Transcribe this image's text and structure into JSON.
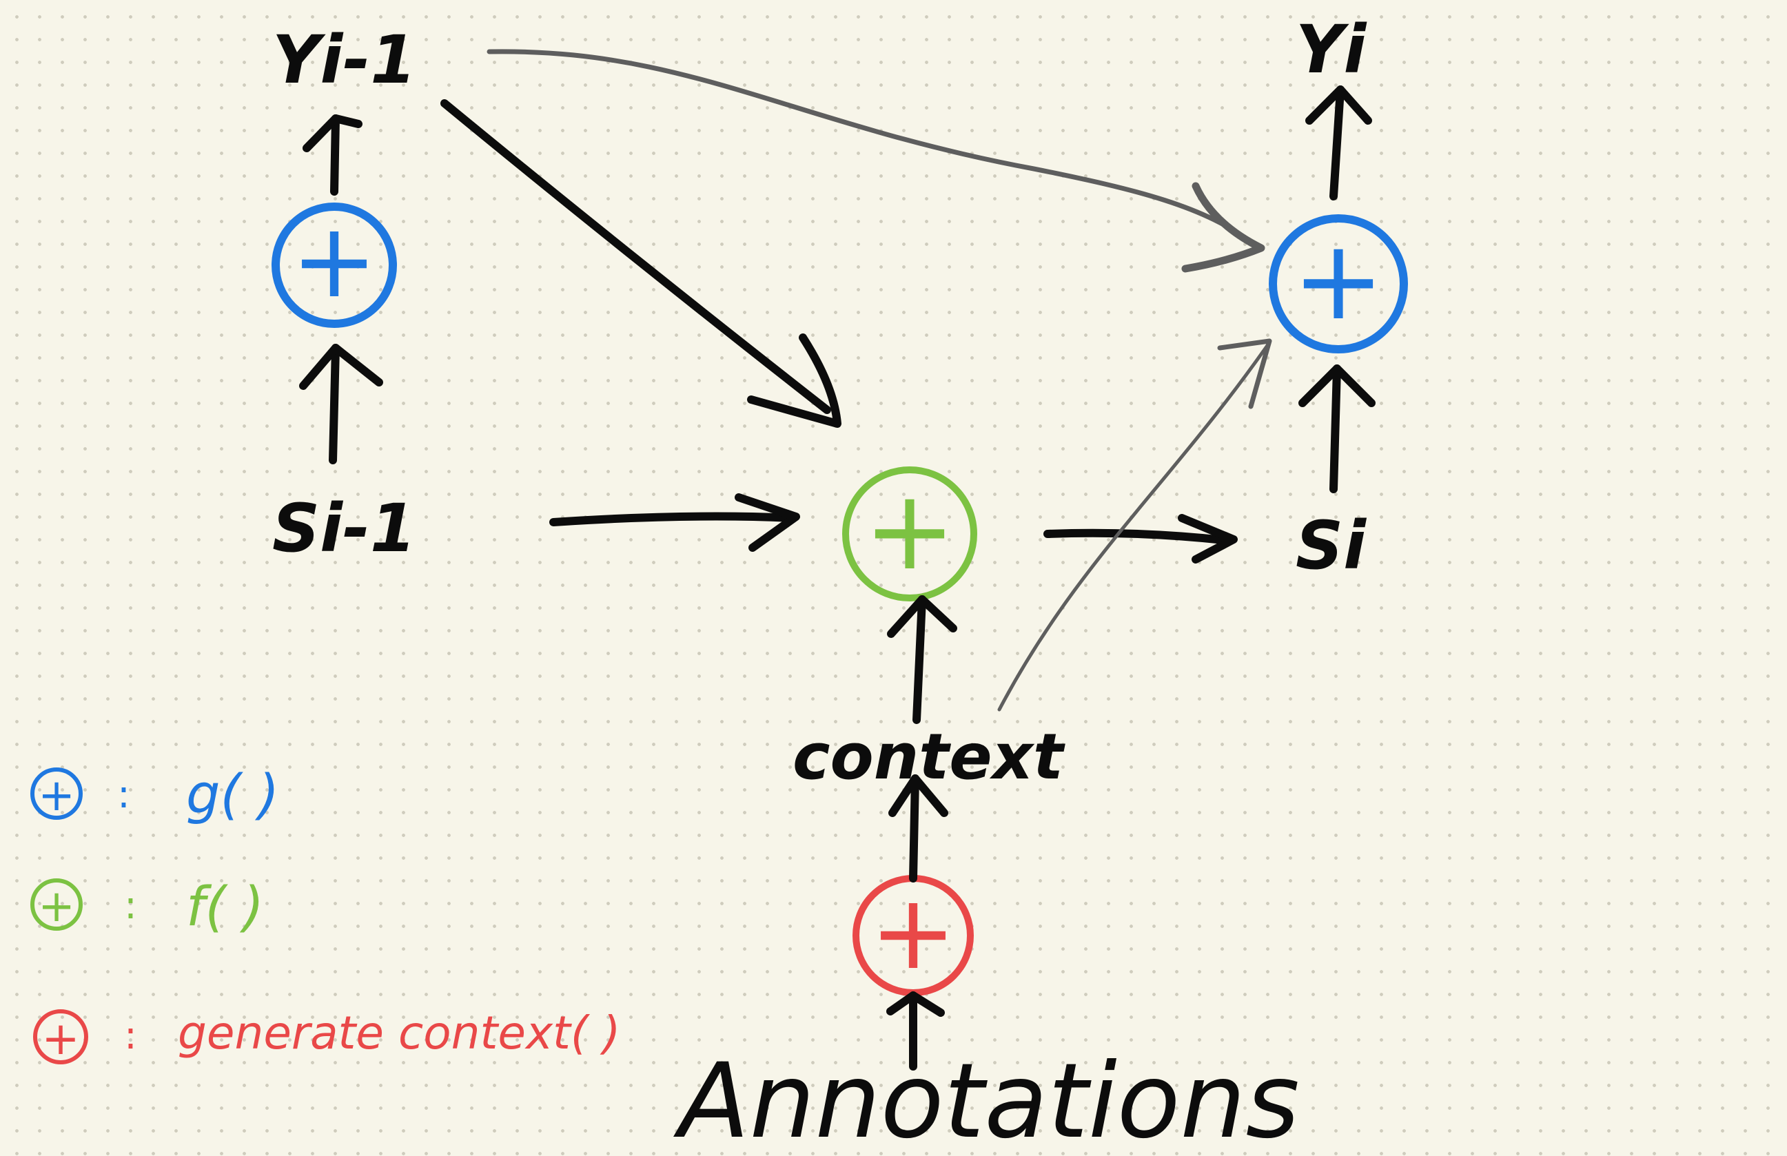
{
  "colors": {
    "background": "#f7f5e9",
    "ink": "#0c0c0c",
    "gray_arrow": "#5e5e5e",
    "g_blue": "#1f78e0",
    "f_green": "#7cc242",
    "context_red": "#e94848"
  },
  "nodes": {
    "y_prev": "Yi-1",
    "s_prev": "Si-1",
    "y_cur": "Yi",
    "s_cur": "Si",
    "context": "context",
    "annotations": "Annotations"
  },
  "operator_symbol": "+",
  "legend": [
    {
      "symbol": "+",
      "separator": ":",
      "label": "g( )",
      "color": "#1f78e0"
    },
    {
      "symbol": "+",
      "separator": ":",
      "label": "f( )",
      "color": "#7cc242"
    },
    {
      "symbol": "+",
      "separator": ":",
      "label": "generate context( )",
      "color": "#e94848"
    }
  ]
}
